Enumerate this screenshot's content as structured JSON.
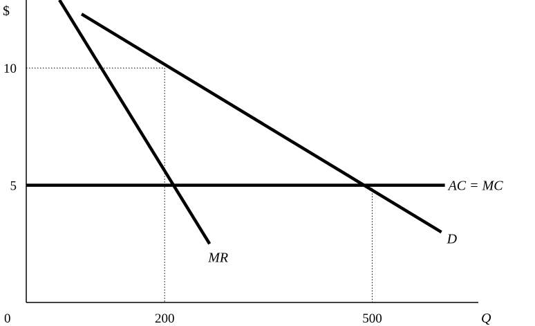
{
  "chart_data": {
    "type": "line",
    "title": "",
    "xlabel": "Q",
    "ylabel": "$",
    "xlim": [
      0,
      700
    ],
    "ylim": [
      0,
      12.9
    ],
    "grid": false,
    "origin_label": "0",
    "x_ticks": [
      {
        "value": 200,
        "label": "200"
      },
      {
        "value": 500,
        "label": "500"
      }
    ],
    "y_ticks": [
      {
        "value": 5,
        "label": "5"
      },
      {
        "value": 10,
        "label": "10"
      }
    ],
    "series": [
      {
        "name": "D",
        "x": [
          80,
          600
        ],
        "y": [
          12.3,
          3.0
        ]
      },
      {
        "name": "MR",
        "x": [
          48,
          265
        ],
        "y": [
          12.9,
          2.5
        ]
      },
      {
        "name": "AC = MC",
        "x": [
          0,
          605
        ],
        "y": [
          5,
          5
        ]
      }
    ],
    "guides": [
      {
        "from": [
          0,
          10
        ],
        "to": [
          200,
          10
        ]
      },
      {
        "from": [
          200,
          10
        ],
        "to": [
          200,
          0
        ]
      },
      {
        "from": [
          500,
          5
        ],
        "to": [
          500,
          0
        ]
      }
    ]
  },
  "labels": {
    "y_axis": "$",
    "x_axis": "Q",
    "origin": "0",
    "demand": "D",
    "marginal_revenue": "MR",
    "cost": "AC = MC"
  }
}
